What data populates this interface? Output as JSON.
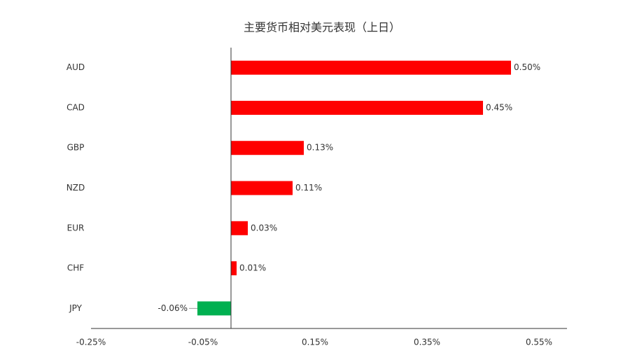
{
  "chart_data": {
    "type": "bar",
    "orientation": "horizontal",
    "title": "主要货币相对美元表现（上日）",
    "categories": [
      "AUD",
      "CAD",
      "GBP",
      "NZD",
      "EUR",
      "CHF",
      "JPY"
    ],
    "values": [
      0.5,
      0.45,
      0.13,
      0.11,
      0.03,
      0.01,
      -0.06
    ],
    "value_labels": [
      "0.50%",
      "0.45%",
      "0.13%",
      "0.11%",
      "0.03%",
      "0.01%",
      "-0.06%"
    ],
    "positive_color": "#ff0000",
    "negative_color": "#00b050",
    "xlim": [
      -0.25,
      0.6
    ],
    "xticks": [
      {
        "value": -0.25,
        "label": "-0.25%"
      },
      {
        "value": -0.05,
        "label": "-0.05%"
      },
      {
        "value": 0.15,
        "label": "0.15%"
      },
      {
        "value": 0.35,
        "label": "0.35%"
      },
      {
        "value": 0.55,
        "label": "0.55%"
      }
    ],
    "grid": false
  }
}
